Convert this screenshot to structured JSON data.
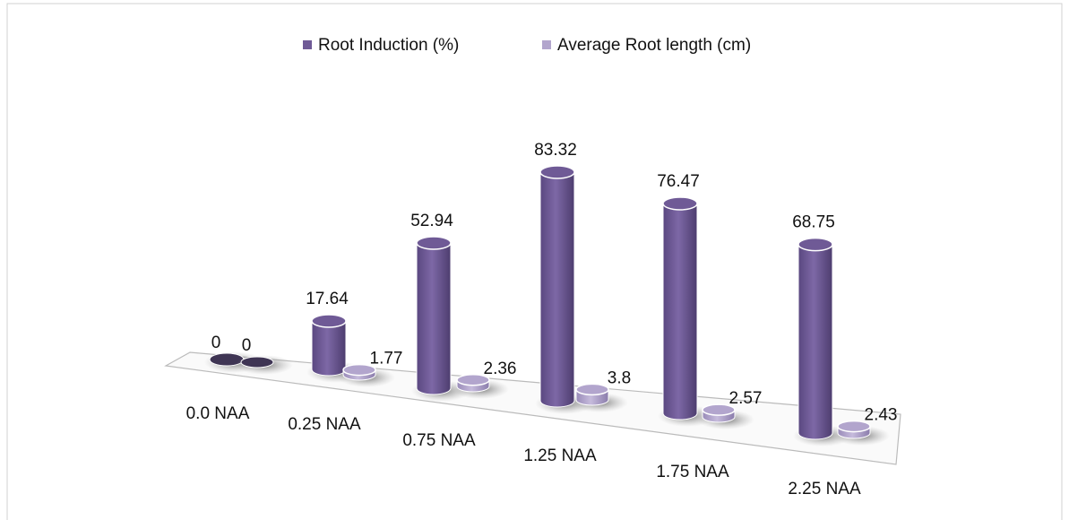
{
  "chart_data": {
    "type": "bar3d",
    "categories": [
      "0.0 NAA",
      "0.25 NAA",
      "0.75 NAA",
      "1.25 NAA",
      "1.75 NAA",
      "2.25 NAA"
    ],
    "series": [
      {
        "name": "Root Induction (%)",
        "color": "#6f5a96",
        "values": [
          0,
          17.64,
          52.94,
          83.32,
          76.47,
          68.75
        ]
      },
      {
        "name": "Average Root length (cm)",
        "color": "#b2a5cd",
        "values": [
          0,
          1.77,
          2.36,
          3.8,
          2.57,
          2.43
        ]
      }
    ],
    "legend": "top"
  }
}
